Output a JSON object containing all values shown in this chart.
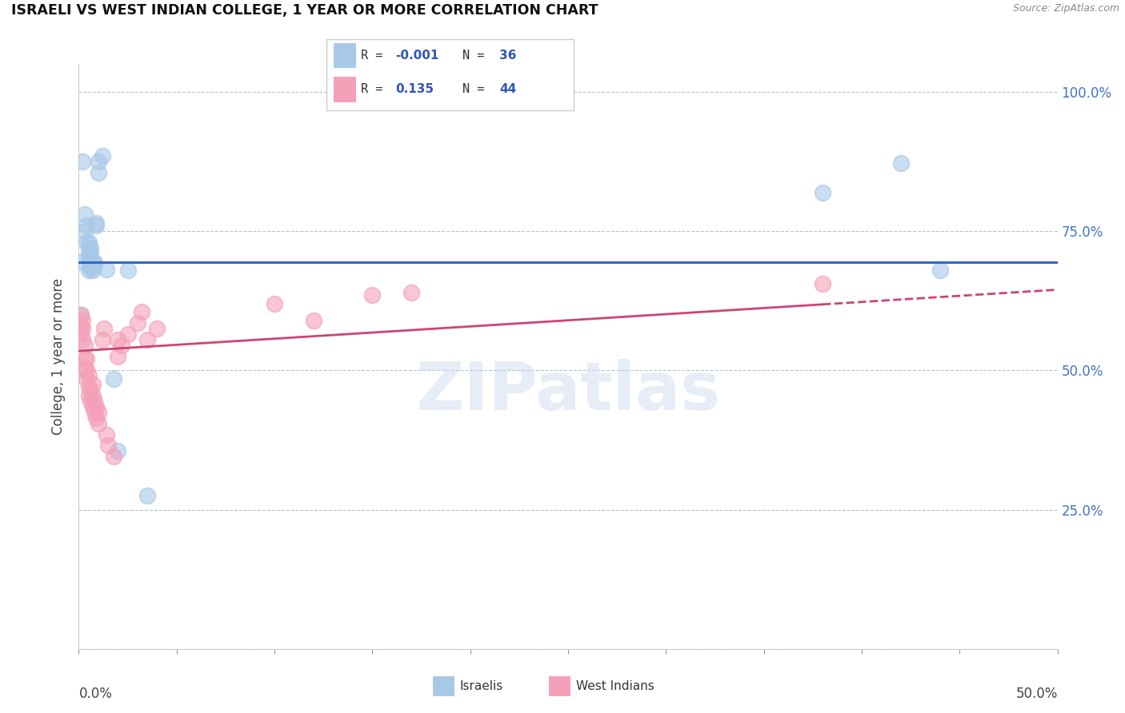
{
  "title": "ISRAELI VS WEST INDIAN COLLEGE, 1 YEAR OR MORE CORRELATION CHART",
  "source": "Source: ZipAtlas.com",
  "ylabel": "College, 1 year or more",
  "xlim": [
    0.0,
    0.5
  ],
  "ylim": [
    0.0,
    1.05
  ],
  "legend_R1": "-0.001",
  "legend_N1": "36",
  "legend_R2": "0.135",
  "legend_N2": "44",
  "blue_color": "#a8c8e8",
  "pink_color": "#f4a0b8",
  "blue_line_color": "#3366cc",
  "pink_line_color": "#cc4477",
  "watermark": "ZIPatlas",
  "israeli_x": [
    0.001,
    0.002,
    0.003,
    0.003,
    0.004,
    0.004,
    0.005,
    0.005,
    0.005,
    0.005,
    0.005,
    0.006,
    0.006,
    0.006,
    0.006,
    0.006,
    0.007,
    0.007,
    0.007,
    0.007,
    0.008,
    0.008,
    0.009,
    0.009,
    0.01,
    0.01,
    0.012,
    0.014,
    0.018,
    0.02,
    0.025,
    0.035,
    0.38,
    0.42,
    0.44,
    0.001
  ],
  "israeli_y": [
    0.695,
    0.875,
    0.75,
    0.78,
    0.73,
    0.76,
    0.68,
    0.7,
    0.71,
    0.72,
    0.73,
    0.685,
    0.69,
    0.7,
    0.71,
    0.72,
    0.68,
    0.685,
    0.69,
    0.695,
    0.69,
    0.695,
    0.76,
    0.765,
    0.855,
    0.875,
    0.885,
    0.682,
    0.485,
    0.355,
    0.68,
    0.275,
    0.82,
    0.872,
    0.68,
    0.6
  ],
  "westindian_x": [
    0.001,
    0.001,
    0.001,
    0.002,
    0.002,
    0.002,
    0.003,
    0.003,
    0.003,
    0.004,
    0.004,
    0.004,
    0.005,
    0.005,
    0.005,
    0.006,
    0.006,
    0.007,
    0.007,
    0.007,
    0.008,
    0.008,
    0.009,
    0.009,
    0.01,
    0.01,
    0.012,
    0.013,
    0.014,
    0.015,
    0.018,
    0.02,
    0.022,
    0.025,
    0.03,
    0.032,
    0.035,
    0.04,
    0.38,
    0.02,
    0.15,
    0.17,
    0.1,
    0.12
  ],
  "westindian_y": [
    0.565,
    0.58,
    0.6,
    0.555,
    0.575,
    0.59,
    0.505,
    0.52,
    0.545,
    0.485,
    0.5,
    0.52,
    0.455,
    0.47,
    0.49,
    0.445,
    0.465,
    0.435,
    0.455,
    0.475,
    0.425,
    0.445,
    0.415,
    0.435,
    0.405,
    0.425,
    0.555,
    0.575,
    0.385,
    0.365,
    0.345,
    0.525,
    0.545,
    0.565,
    0.585,
    0.605,
    0.555,
    0.575,
    0.655,
    0.555,
    0.635,
    0.64,
    0.62,
    0.59
  ],
  "blue_regression_y0": 0.695,
  "blue_regression_y1": 0.695,
  "pink_regression_y0": 0.535,
  "pink_regression_y1": 0.645,
  "pink_solid_xend": 0.38
}
